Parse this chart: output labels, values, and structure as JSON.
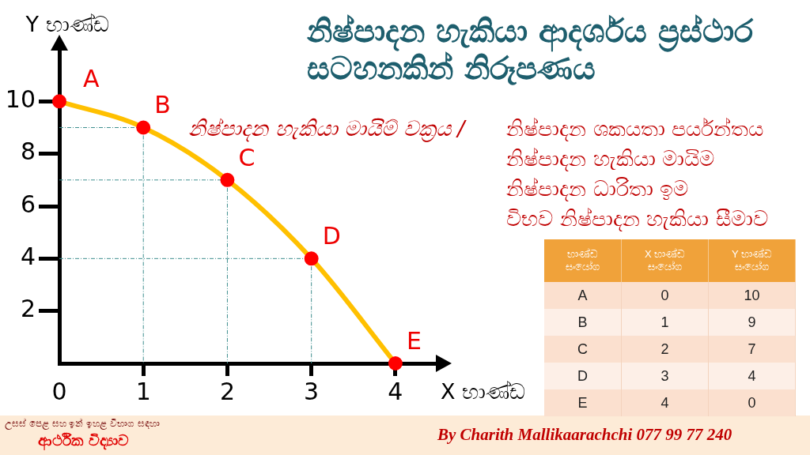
{
  "chart_data": [
    {
      "type": "line",
      "title": "නිෂ්පාදන හැකියා ආදර්ශය ප්‍රස්ථාර සටහනකින් නිරූපණය",
      "xlabel": "X භාණ්ඩ",
      "ylabel": "Y භාණ්ඩ",
      "x": [
        0,
        1,
        2,
        3,
        4
      ],
      "series": [
        {
          "type": "line",
          "color": "#ffc000",
          "marker": "none",
          "values": [
            10,
            9,
            7,
            4,
            0
          ]
        },
        {
          "type": "scatter",
          "color": "#ff0000",
          "marker": "circle",
          "values": [
            10,
            9,
            7,
            4,
            0
          ]
        }
      ],
      "xlim": [
        0,
        4.5
      ],
      "xticks": [
        0,
        1,
        2,
        3,
        4
      ],
      "ylim": [
        0,
        12
      ],
      "yticks": [
        2,
        4,
        6,
        8,
        10
      ],
      "annotations": [
        {
          "text": "A",
          "x": 0,
          "y": 10
        },
        {
          "text": "B",
          "x": 1,
          "y": 9
        },
        {
          "text": "C",
          "x": 2,
          "y": 7
        },
        {
          "text": "D",
          "x": 3,
          "y": 4
        },
        {
          "text": "E",
          "x": 4,
          "y": 0
        },
        "නිෂ්පාදන හැකියා මායිම් වක්‍රය /",
        "නිෂ්පාදන ශකයතා පර්යන්තය",
        "නිෂ්පාදන හැකියා මායිම",
        "නිෂ්පාදන ධාරිතා ඉම",
        "විභව නිෂ්පාදන හැකියා සීමාව",
        "උසස් පෙළ සහ ඉන් ඉහළ විභාග සඳහා",
        "ආර්ථික විද්‍යාව",
        "By Charith Mallikaarachchi 077 99 77 240"
      ]
    },
    {
      "type": "heatmap",
      "ylabel": "භාණ්ඩ සංයෝග",
      "categories": [
        "X භාණ්ඩ සංයෝග",
        "Y භාණ්ඩ සංයෝග"
      ],
      "y_categories": [
        "A",
        "B",
        "C",
        "D",
        "E"
      ],
      "cells": [
        [
          0,
          10
        ],
        [
          1,
          9
        ],
        [
          2,
          7
        ],
        [
          3,
          4
        ],
        [
          4,
          0
        ]
      ],
      "data_labels": true
    }
  ]
}
